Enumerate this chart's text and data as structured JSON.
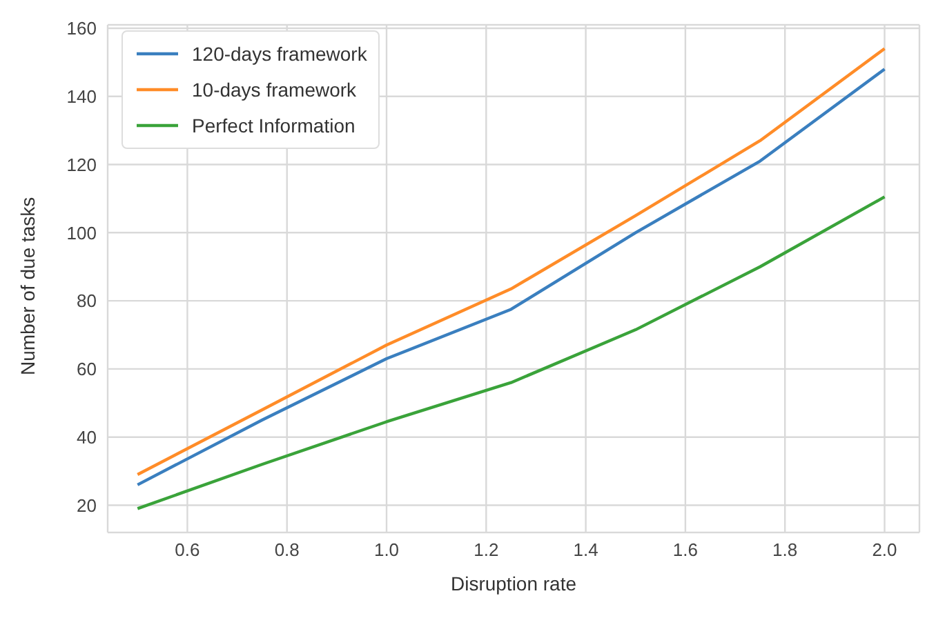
{
  "chart_data": {
    "type": "line",
    "xlabel": "Disruption rate",
    "ylabel": "Number of due tasks",
    "x": [
      0.5,
      0.75,
      1.0,
      1.25,
      1.5,
      1.75,
      2.0
    ],
    "series": [
      {
        "name": "120-days framework",
        "color": "#3a7fbf",
        "values": [
          26,
          45,
          63,
          77.5,
          100,
          121,
          148
        ]
      },
      {
        "name": "10-days framework",
        "color": "#ff8c28",
        "values": [
          29,
          48,
          67,
          83.5,
          105,
          127,
          154
        ]
      },
      {
        "name": "Perfect Information",
        "color": "#3aa33a",
        "values": [
          19,
          32,
          44.5,
          56,
          71.5,
          90,
          110.5
        ]
      }
    ],
    "xlim": [
      0.44,
      2.07
    ],
    "xticks": [
      {
        "value": 0.6,
        "label": "0.6"
      },
      {
        "value": 0.8,
        "label": "0.8"
      },
      {
        "value": 1.0,
        "label": "1.0"
      },
      {
        "value": 1.2,
        "label": "1.2"
      },
      {
        "value": 1.4,
        "label": "1.4"
      },
      {
        "value": 1.6,
        "label": "1.6"
      },
      {
        "value": 1.8,
        "label": "1.8"
      },
      {
        "value": 2.0,
        "label": "2.0"
      }
    ],
    "ylim": [
      12,
      161
    ],
    "yticks": [
      20,
      40,
      60,
      80,
      100,
      120,
      140,
      160
    ],
    "grid": true,
    "legend": "top left",
    "marker": "none",
    "line_style": "solid"
  }
}
